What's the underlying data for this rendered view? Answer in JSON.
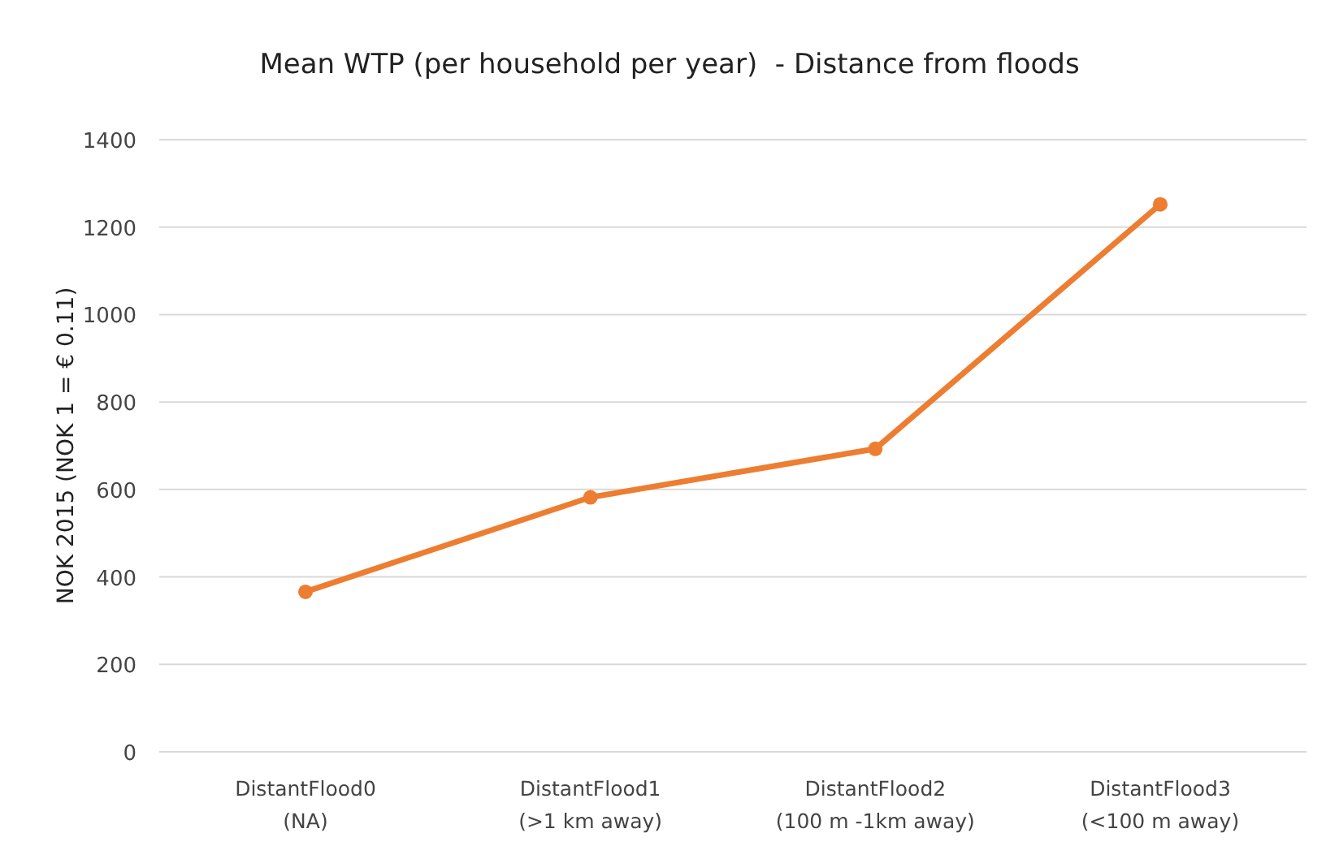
{
  "chart_data": {
    "type": "line",
    "title": "Mean WTP (per household per year)  - Distance from floods",
    "ylabel": "NOK 2015 (NOK 1 = € 0.11)",
    "categories": [
      "DistantFlood0\n(NA)",
      "DistantFlood1\n(>1 km away)",
      "DistantFlood2\n(100 m -1km away)",
      "DistantFlood3\n(<100 m away)"
    ],
    "series": [
      {
        "color": "#ed7d31",
        "values": [
          366,
          582,
          693,
          1252
        ]
      }
    ],
    "ylim": [
      0,
      1400
    ],
    "yticks": [
      0,
      200,
      400,
      600,
      800,
      1000,
      1200,
      1400
    ],
    "grid": "y",
    "marker": "circle",
    "line_style": "solid"
  }
}
